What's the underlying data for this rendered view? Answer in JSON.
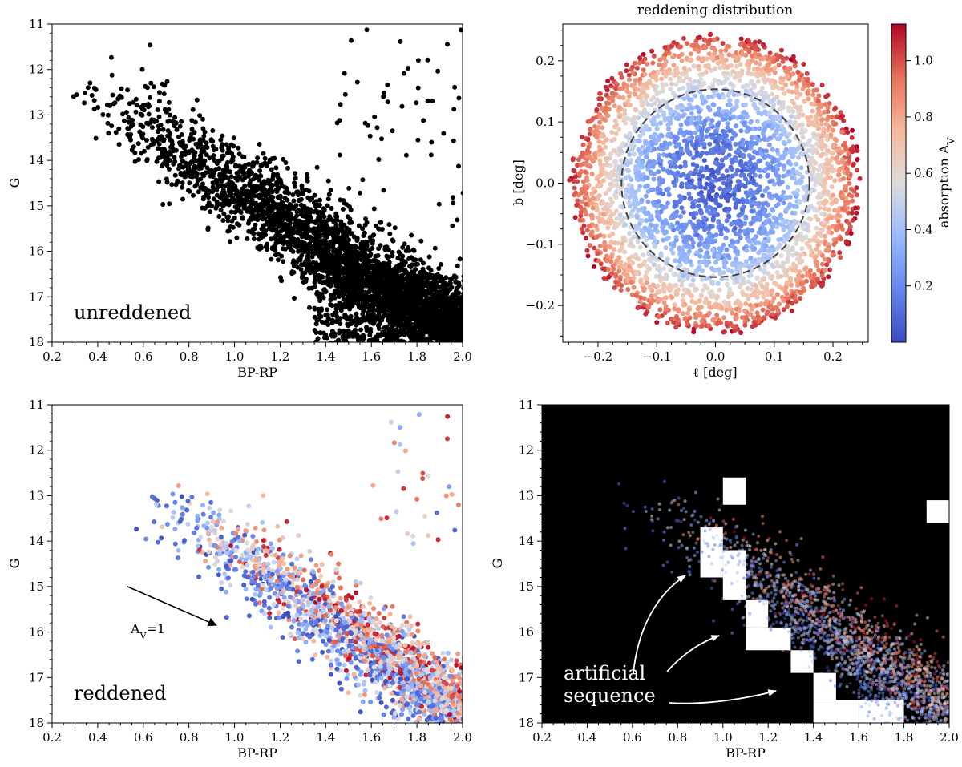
{
  "chart_data": [
    {
      "id": "unreddened",
      "type": "scatter",
      "title": "",
      "xlabel": "BP-RP",
      "ylabel": "G",
      "xlim": [
        0.2,
        2.0
      ],
      "ylim": [
        18,
        11
      ],
      "x_ticks": [
        "0.2",
        "0.4",
        "0.6",
        "0.8",
        "1.0",
        "1.2",
        "1.4",
        "1.6",
        "1.8",
        "2.0"
      ],
      "y_ticks": [
        "11",
        "12",
        "13",
        "14",
        "15",
        "16",
        "17",
        "18"
      ],
      "annotation": "unreddened",
      "point_color": "#000000",
      "series_description": "Color-magnitude diagram, black points along a main sequence from (0.3, 12.3) to (2.0, 18)"
    },
    {
      "id": "reddening-map",
      "type": "scatter",
      "title": "reddening distribution",
      "xlabel": "ℓ [deg]",
      "ylabel": "b [deg]",
      "xlim": [
        -0.26,
        0.26
      ],
      "ylim": [
        -0.26,
        0.26
      ],
      "x_ticks": [
        "−0.2",
        "−0.1",
        "0.0",
        "0.1",
        "0.2"
      ],
      "y_ticks": [
        "−0.2",
        "−0.1",
        "0.0",
        "0.1",
        "0.2"
      ],
      "colorbar": {
        "label": "absorption A",
        "label_sub": "V",
        "range": [
          0.0,
          1.13
        ],
        "ticks": [
          "0.2",
          "0.4",
          "0.6",
          "0.8",
          "1.0"
        ],
        "tick_values": [
          0.2,
          0.4,
          0.6,
          0.8,
          1.0
        ],
        "colormap": [
          "#3b4cc0",
          "#7b9ff9",
          "#c0d4f5",
          "#dddddd",
          "#f2cbb7",
          "#ee8468",
          "#b40426"
        ]
      },
      "disk_radius": 0.245,
      "dashed_circle_radius": 0.16
    },
    {
      "id": "reddened",
      "type": "scatter",
      "title": "",
      "xlabel": "BP-RP",
      "ylabel": "G",
      "xlim": [
        0.2,
        2.0
      ],
      "ylim": [
        18,
        11
      ],
      "x_ticks": [
        "0.2",
        "0.4",
        "0.6",
        "0.8",
        "1.0",
        "1.2",
        "1.4",
        "1.6",
        "1.8",
        "2.0"
      ],
      "y_ticks": [
        "11",
        "12",
        "13",
        "14",
        "15",
        "16",
        "17",
        "18"
      ],
      "annotation": "reddened",
      "arrow": {
        "x0": 0.53,
        "y0": 15.0,
        "x1": 0.92,
        "y1": 15.85,
        "label": "A",
        "label_sub": "V",
        "label_suffix": "=1"
      }
    },
    {
      "id": "artificial",
      "type": "heatmap",
      "title": "",
      "xlabel": "BP-RP",
      "ylabel": "G",
      "xlim": [
        0.2,
        2.0
      ],
      "ylim": [
        18,
        11
      ],
      "x_ticks": [
        "0.2",
        "0.4",
        "0.6",
        "0.8",
        "1.0",
        "1.2",
        "1.4",
        "1.6",
        "1.8",
        "2.0"
      ],
      "y_ticks": [
        "11",
        "12",
        "13",
        "14",
        "15",
        "16",
        "17",
        "18"
      ],
      "annotation_line1": "artificial",
      "annotation_line2": "sequence",
      "background": "#000000",
      "white_cells": [
        [
          1.0,
          1.1,
          12.6,
          13.2
        ],
        [
          0.9,
          1.0,
          13.7,
          14.8
        ],
        [
          1.0,
          1.1,
          14.2,
          15.3
        ],
        [
          1.1,
          1.2,
          15.3,
          15.9
        ],
        [
          1.1,
          1.3,
          15.9,
          16.4
        ],
        [
          1.3,
          1.4,
          16.4,
          16.9
        ],
        [
          1.4,
          1.5,
          16.9,
          17.5
        ],
        [
          1.4,
          1.6,
          17.5,
          18.0
        ],
        [
          1.6,
          1.8,
          17.5,
          18.0
        ],
        [
          1.9,
          2.0,
          13.1,
          13.6
        ]
      ]
    }
  ]
}
